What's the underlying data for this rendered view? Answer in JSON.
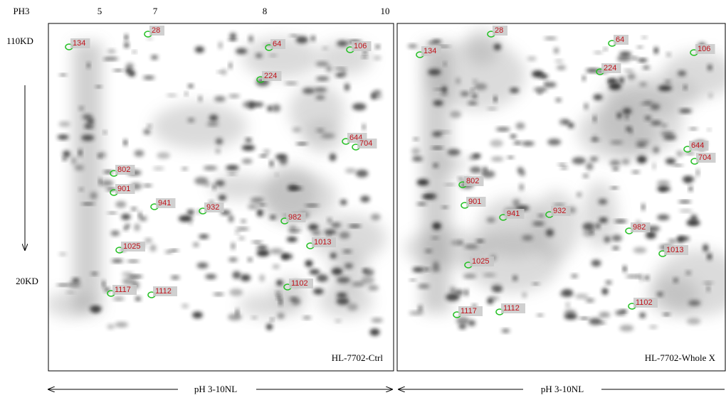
{
  "axis": {
    "ph_ticks": [
      "PH3",
      "5",
      "7",
      "8",
      "10"
    ],
    "mw_top": "110KD",
    "mw_bottom": "20KD"
  },
  "panels": [
    {
      "caption": "HL-7702-Ctrl",
      "ph_range": "pH 3-10NL",
      "spots": [
        "134",
        "28",
        "64",
        "106",
        "224",
        "644",
        "704",
        "802",
        "901",
        "941",
        "932",
        "982",
        "1013",
        "1025",
        "1102",
        "1117",
        "1112"
      ]
    },
    {
      "caption": "HL-7702-Whole X",
      "ph_range": "pH 3-10NL",
      "spots": [
        "28",
        "64",
        "106",
        "134",
        "224",
        "644",
        "704",
        "802",
        "901",
        "941",
        "932",
        "982",
        "1013",
        "1025",
        "1102",
        "1117",
        "1112"
      ]
    }
  ]
}
